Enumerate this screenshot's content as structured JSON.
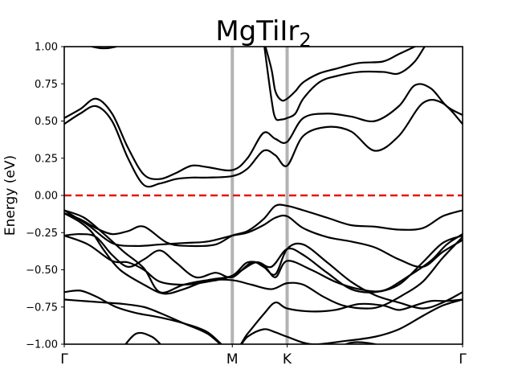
{
  "chart_data": {
    "type": "line",
    "title": "MgTiIr",
    "title_subscript": "2",
    "xlabel": "",
    "ylabel": "Energy (eV)",
    "ylim": [
      -1.0,
      1.0
    ],
    "xlim": [
      0,
      1
    ],
    "yticks": [
      -1.0,
      -0.75,
      -0.5,
      -0.25,
      0.0,
      0.25,
      0.5,
      0.75,
      1.0
    ],
    "ytick_labels": [
      "−1.00",
      "−0.75",
      "−0.50",
      "−0.25",
      "0.00",
      "0.25",
      "0.50",
      "0.75",
      "1.00"
    ],
    "kpoints": [
      {
        "label": "Γ",
        "x": 0.0
      },
      {
        "label": "M",
        "x": 0.4219
      },
      {
        "label": "K",
        "x": 0.5595
      },
      {
        "label": "Γ",
        "x": 1.0
      }
    ],
    "fermi_level": 0.0,
    "colors": {
      "bands": "#000000",
      "fermi": "#e8140d",
      "kpath": "#b3b3b3"
    },
    "series": [
      {
        "name": "band-1",
        "x": [
          0.0,
          0.04,
          0.07,
          0.1,
          0.14,
          0.2,
          0.25,
          0.3,
          0.36,
          0.4219,
          0.48,
          0.52,
          0.5595,
          0.6,
          0.66,
          0.72,
          0.78,
          0.84,
          0.9,
          0.95,
          1.0
        ],
        "y": [
          -0.12,
          -0.18,
          -0.25,
          -0.37,
          -0.5,
          -0.6,
          -0.66,
          -0.63,
          -0.57,
          -0.54,
          -0.45,
          -0.48,
          -0.36,
          -0.4,
          -0.52,
          -0.63,
          -0.65,
          -0.6,
          -0.45,
          -0.32,
          -0.27
        ]
      },
      {
        "name": "band-2",
        "x": [
          0.0,
          0.05,
          0.1,
          0.15,
          0.2,
          0.24,
          0.3,
          0.36,
          0.4219,
          0.47,
          0.52,
          0.5595,
          0.6,
          0.65,
          0.7,
          0.76,
          0.8,
          0.85,
          0.9,
          0.95,
          1.0
        ],
        "y": [
          -0.1,
          -0.15,
          -0.26,
          -0.38,
          -0.49,
          -0.65,
          -0.6,
          -0.57,
          -0.57,
          -0.6,
          -0.63,
          -0.59,
          -0.6,
          -0.68,
          -0.74,
          -0.76,
          -0.74,
          -0.67,
          -0.58,
          -0.42,
          -0.28
        ]
      },
      {
        "name": "band-3",
        "x": [
          0.0,
          0.04,
          0.08,
          0.12,
          0.16,
          0.2,
          0.24,
          0.28,
          0.33,
          0.38,
          0.4219,
          0.47,
          0.5,
          0.53,
          0.5595,
          0.6,
          0.66,
          0.72,
          0.78,
          0.84,
          0.9,
          0.95,
          1.0
        ],
        "y": [
          -0.27,
          -0.26,
          -0.28,
          -0.4,
          -0.48,
          -0.43,
          -0.37,
          -0.45,
          -0.55,
          -0.52,
          -0.55,
          -0.45,
          -0.48,
          -0.53,
          -0.36,
          -0.33,
          -0.45,
          -0.58,
          -0.67,
          -0.72,
          -0.76,
          -0.72,
          -0.65
        ]
      },
      {
        "name": "band-4",
        "x": [
          0.0,
          0.04,
          0.08,
          0.13,
          0.18,
          0.24,
          0.3,
          0.36,
          0.4219,
          0.46,
          0.5,
          0.53,
          0.5595,
          0.62,
          0.7,
          0.78,
          0.84,
          0.9,
          0.95,
          1.0
        ],
        "y": [
          -0.65,
          -0.64,
          -0.68,
          -0.75,
          -0.79,
          -0.82,
          -0.86,
          -0.92,
          -1.05,
          -0.95,
          -0.9,
          -0.92,
          -0.95,
          -1.0,
          -0.98,
          -0.95,
          -0.9,
          -0.81,
          -0.74,
          -0.7
        ]
      },
      {
        "name": "band-5",
        "x": [
          0.0,
          0.05,
          0.1,
          0.15,
          0.2,
          0.24,
          0.3,
          0.36,
          0.4219,
          0.46,
          0.5,
          0.53,
          0.5595,
          0.62,
          0.68,
          0.74,
          0.8,
          0.84,
          0.88,
          0.92,
          0.96,
          1.0
        ],
        "y": [
          -0.7,
          -0.71,
          -0.72,
          -0.73,
          -0.75,
          -0.79,
          -0.86,
          -0.93,
          -1.05,
          -0.93,
          -0.8,
          -0.72,
          -0.76,
          -0.78,
          -0.77,
          -0.73,
          -0.74,
          -0.77,
          -0.74,
          -0.71,
          -0.71,
          -0.7
        ]
      },
      {
        "name": "band-6",
        "x": [
          0.0,
          0.06,
          0.12,
          0.16,
          0.2,
          0.24,
          0.3,
          0.36,
          0.4219,
          0.46,
          0.5,
          0.53,
          0.5595,
          0.62,
          0.68,
          0.74,
          0.8,
          0.86,
          0.92,
          0.96,
          1.0
        ],
        "y": [
          -0.27,
          -0.33,
          -0.44,
          -0.45,
          -0.5,
          -0.58,
          -0.6,
          -0.58,
          -0.54,
          -0.45,
          -0.47,
          -0.55,
          -0.44,
          -0.5,
          -0.58,
          -0.63,
          -0.64,
          -0.55,
          -0.44,
          -0.33,
          -0.26
        ]
      },
      {
        "name": "band-7",
        "x": [
          0.0,
          0.04,
          0.08,
          0.12,
          0.16,
          0.2,
          0.26,
          0.32,
          0.38,
          0.4219,
          0.46,
          0.5,
          0.53,
          0.5595,
          0.6,
          0.66,
          0.72,
          0.78,
          0.84,
          0.9,
          0.95,
          1.0
        ],
        "y": [
          -0.12,
          -0.16,
          -0.22,
          -0.26,
          -0.24,
          -0.21,
          -0.32,
          -0.34,
          -0.33,
          -0.27,
          -0.24,
          -0.16,
          -0.07,
          -0.07,
          -0.1,
          -0.15,
          -0.2,
          -0.21,
          -0.23,
          -0.22,
          -0.14,
          -0.1
        ]
      },
      {
        "name": "band-8",
        "x": [
          0.0,
          0.06,
          0.12,
          0.18,
          0.24,
          0.3,
          0.36,
          0.4219,
          0.46,
          0.5,
          0.53,
          0.5595,
          0.6,
          0.66,
          0.72,
          0.78,
          0.84,
          0.9,
          0.95,
          1.0
        ],
        "y": [
          -0.1,
          -0.2,
          -0.32,
          -0.34,
          -0.33,
          -0.32,
          -0.31,
          -0.27,
          -0.25,
          -0.2,
          -0.15,
          -0.14,
          -0.22,
          -0.28,
          -0.31,
          -0.35,
          -0.43,
          -0.48,
          -0.38,
          -0.3
        ]
      },
      {
        "name": "band-9",
        "x": [
          0.0,
          0.04,
          0.08,
          0.12,
          0.16,
          0.2,
          0.24,
          0.28,
          0.32,
          0.36,
          0.4219,
          0.46,
          0.5,
          0.53,
          0.5595,
          0.6,
          0.66,
          0.72,
          0.78,
          0.84,
          0.9,
          0.95,
          1.0
        ],
        "y": [
          0.48,
          0.55,
          0.6,
          0.5,
          0.25,
          0.07,
          0.08,
          0.11,
          0.12,
          0.12,
          0.13,
          0.18,
          0.3,
          0.27,
          0.2,
          0.4,
          0.46,
          0.43,
          0.3,
          0.4,
          0.62,
          0.62,
          0.48
        ]
      },
      {
        "name": "band-10",
        "x": [
          0.0,
          0.04,
          0.08,
          0.12,
          0.16,
          0.2,
          0.24,
          0.28,
          0.32,
          0.36,
          0.4219,
          0.46,
          0.5,
          0.53,
          0.5595,
          0.6,
          0.66,
          0.72,
          0.78,
          0.84,
          0.88,
          0.92,
          0.96,
          1.0
        ],
        "y": [
          0.52,
          0.58,
          0.65,
          0.55,
          0.32,
          0.14,
          0.11,
          0.15,
          0.2,
          0.19,
          0.17,
          0.25,
          0.42,
          0.38,
          0.36,
          0.52,
          0.55,
          0.53,
          0.5,
          0.6,
          0.74,
          0.72,
          0.6,
          0.54
        ]
      },
      {
        "name": "band-11",
        "x": [
          0.5,
          0.52,
          0.53,
          0.545,
          0.5595,
          0.58,
          0.6,
          0.64,
          0.68,
          0.74,
          0.8,
          0.84,
          0.88,
          0.92
        ],
        "y": [
          1.05,
          0.85,
          0.7,
          0.64,
          0.65,
          0.7,
          0.76,
          0.82,
          0.85,
          0.89,
          0.9,
          0.95,
          1.0,
          1.05
        ]
      },
      {
        "name": "band-12",
        "x": [
          0.5,
          0.52,
          0.53,
          0.545,
          0.5595,
          0.58,
          0.6,
          0.64,
          0.68,
          0.74,
          0.8,
          0.84,
          0.88,
          0.92,
          0.96,
          1.0
        ],
        "y": [
          1.05,
          0.65,
          0.52,
          0.51,
          0.52,
          0.55,
          0.65,
          0.76,
          0.8,
          0.83,
          0.83,
          0.82,
          0.9,
          1.05,
          1.05,
          1.05
        ]
      },
      {
        "name": "band-13",
        "x": [
          0.07,
          0.09,
          0.11,
          0.13
        ],
        "y": [
          1.0,
          0.99,
          0.99,
          1.0
        ]
      },
      {
        "name": "band-14",
        "x": [
          0.14,
          0.18,
          0.22,
          0.25,
          0.28,
          0.32,
          0.36,
          0.4219,
          0.46,
          0.5,
          0.5595,
          0.6,
          0.66,
          0.72,
          0.78,
          0.84,
          0.9,
          0.95,
          1.0
        ],
        "y": [
          -1.05,
          -0.93,
          -0.95,
          -1.02,
          -1.05,
          -1.05,
          -1.05,
          -1.05,
          -1.05,
          -1.05,
          -1.05,
          -1.05,
          -1.05,
          -0.99,
          -1.0,
          -1.05,
          -1.05,
          -1.05,
          -1.05
        ]
      }
    ]
  }
}
